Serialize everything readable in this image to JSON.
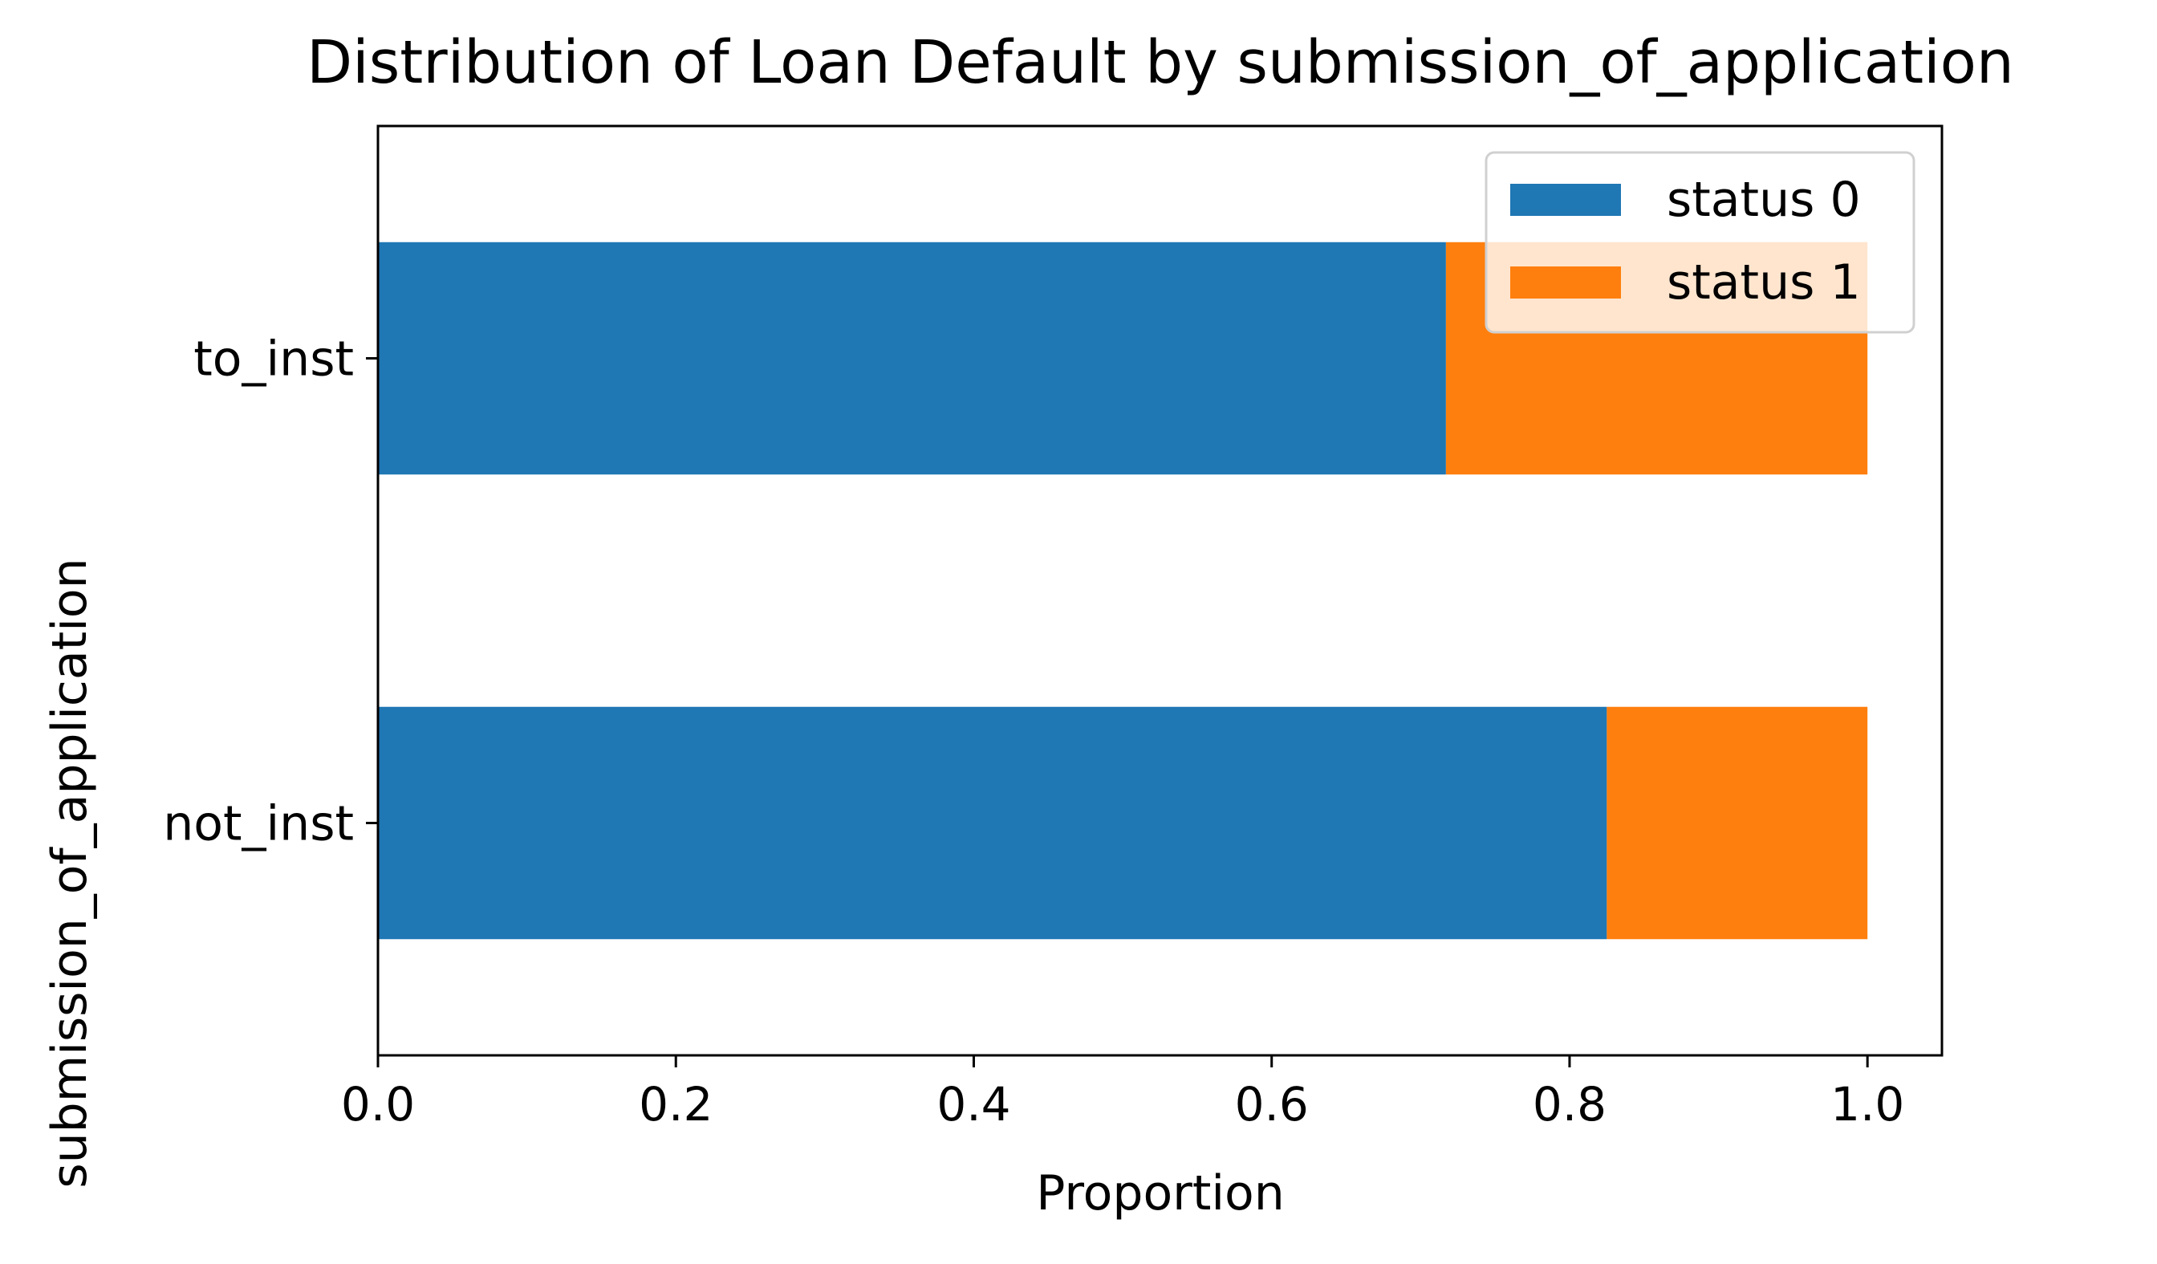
{
  "chart_data": {
    "type": "bar",
    "orientation": "horizontal",
    "stacked": true,
    "title": "Distribution of Loan Default by submission_of_application",
    "xlabel": "Proportion",
    "ylabel": "submission_of_application",
    "categories": [
      "not_inst",
      "to_inst"
    ],
    "series": [
      {
        "name": "status 0",
        "color": "#1f77b4",
        "values": [
          0.825,
          0.717
        ]
      },
      {
        "name": "status 1",
        "color": "#ff7f0e",
        "values": [
          0.175,
          0.283
        ]
      }
    ],
    "xlim": [
      0.0,
      1.05
    ],
    "xticks": [
      0.0,
      0.2,
      0.4,
      0.6,
      0.8,
      1.0
    ],
    "xtick_labels": [
      "0.0",
      "0.2",
      "0.4",
      "0.6",
      "0.8",
      "1.0"
    ],
    "grid": false,
    "legend_position": "top-right"
  }
}
